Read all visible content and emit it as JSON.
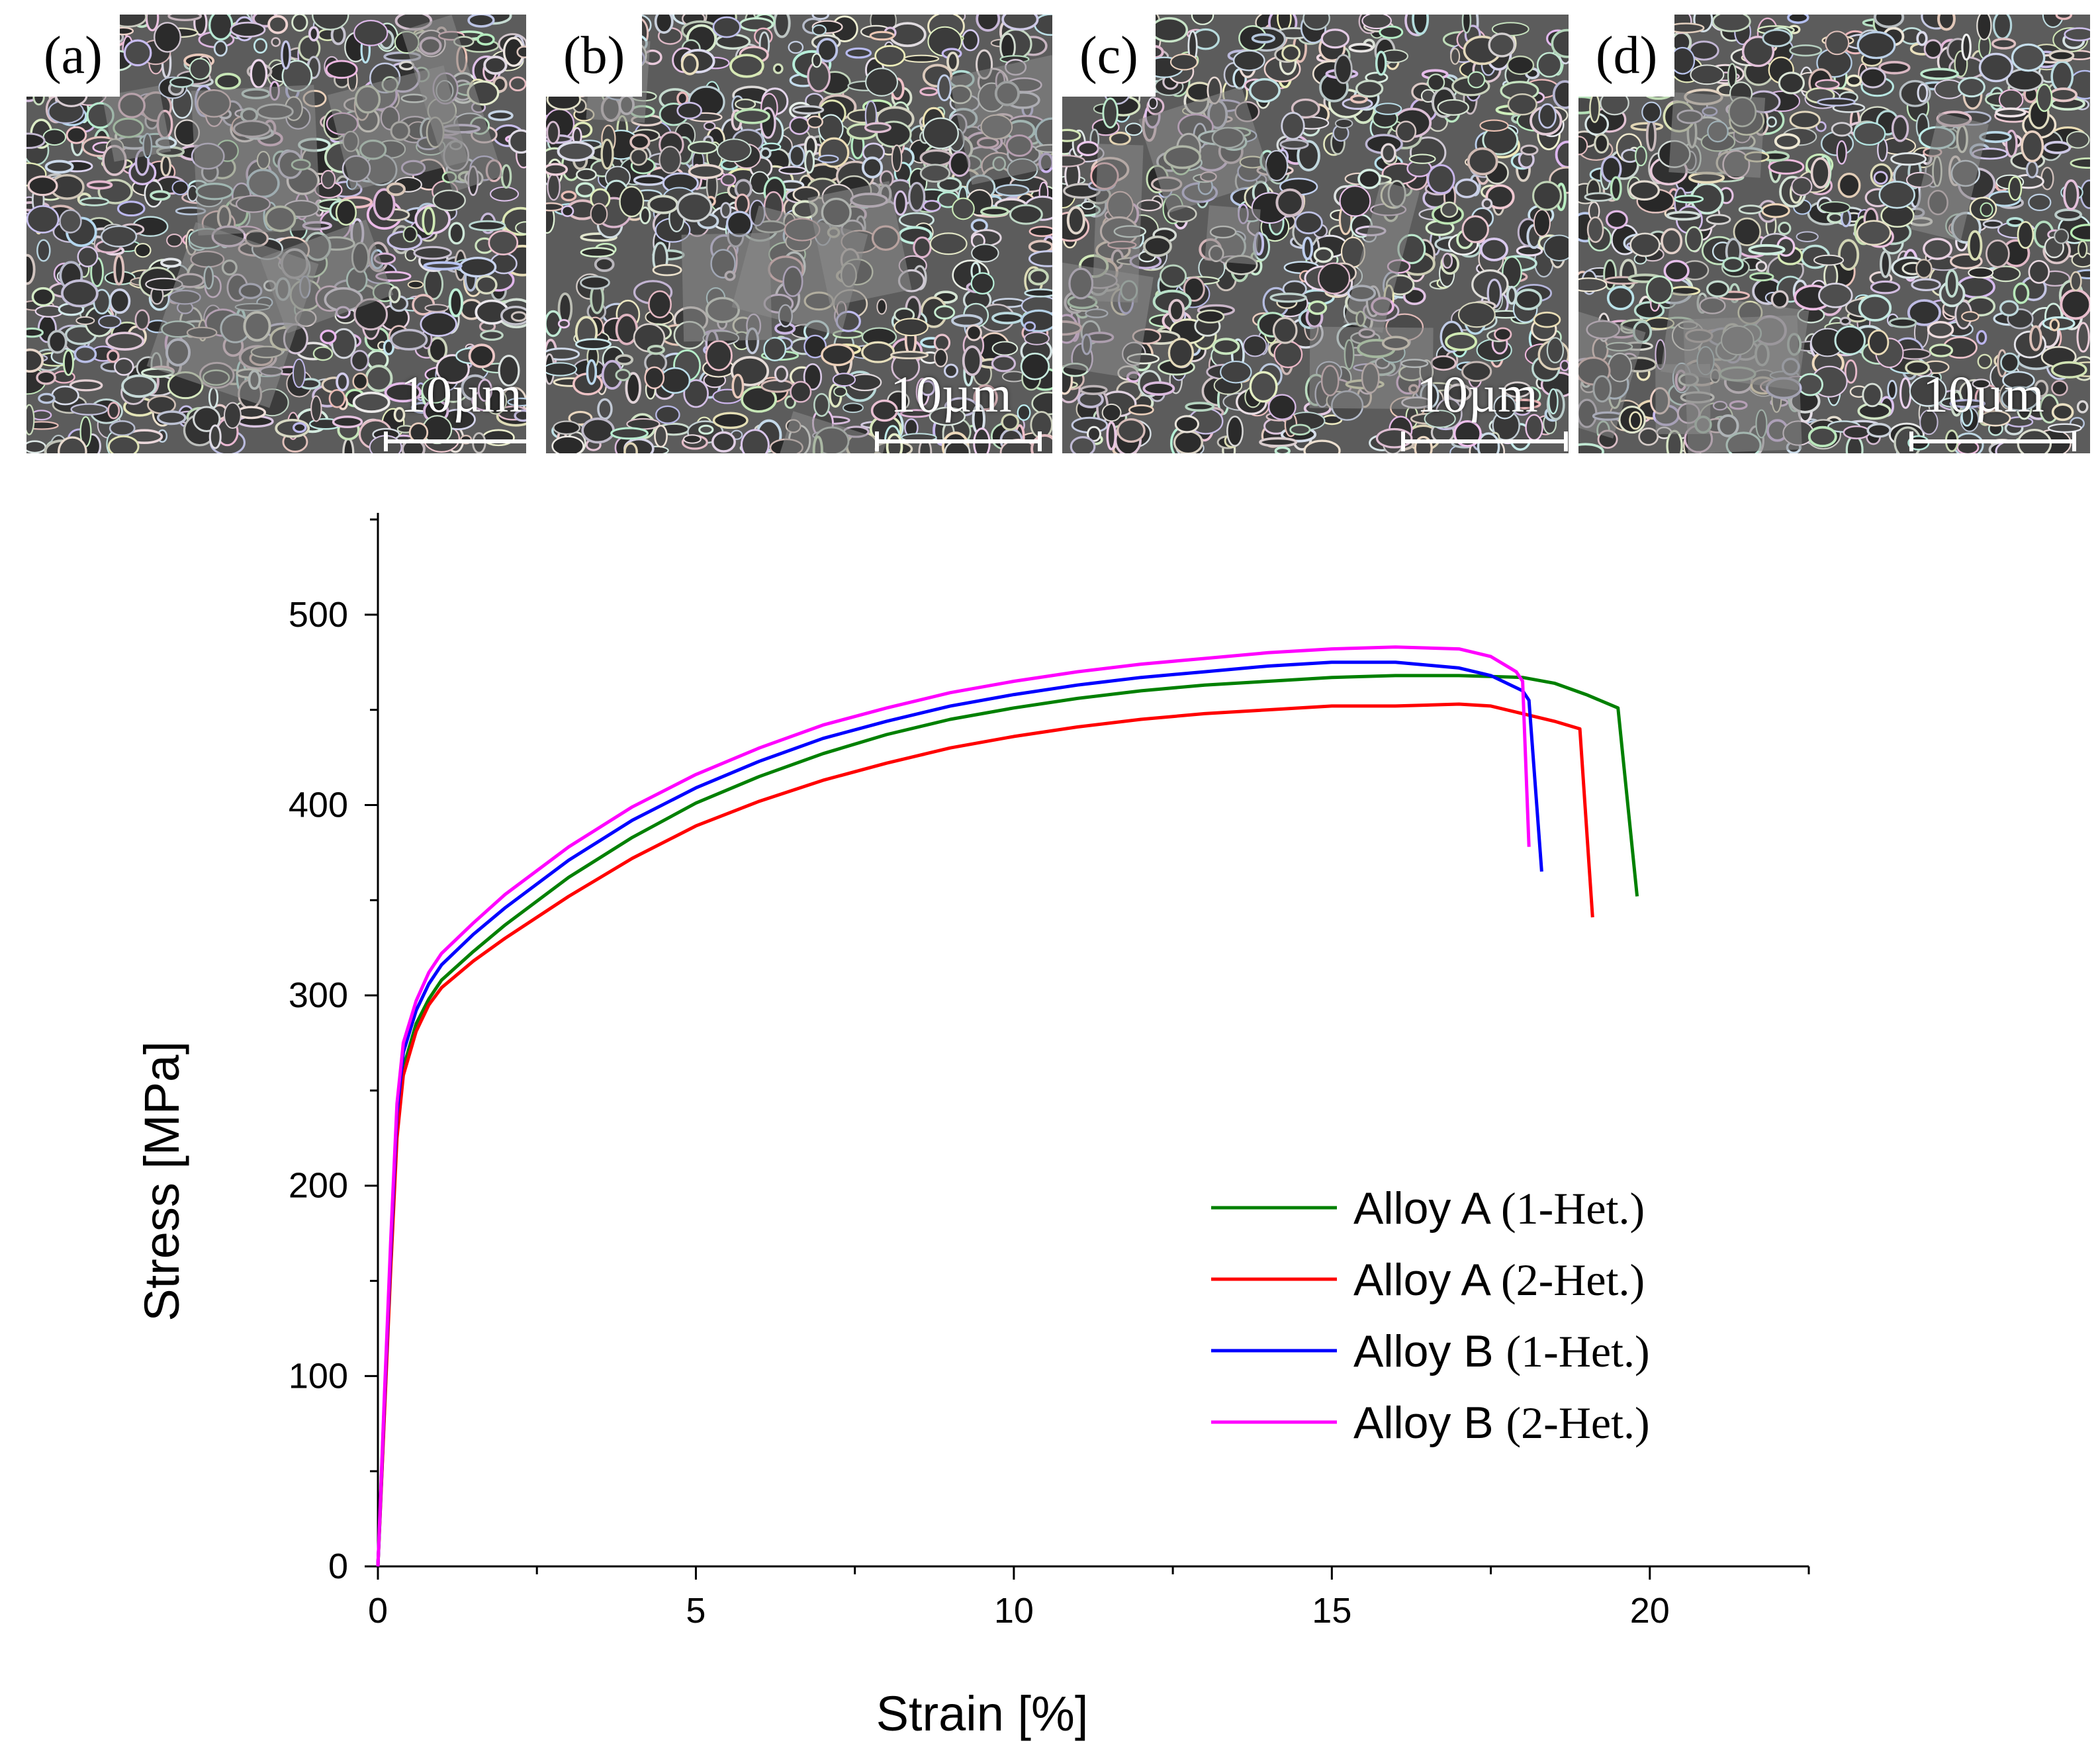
{
  "panels": [
    {
      "label": "(a)",
      "scale_label": "10µm"
    },
    {
      "label": "(b)",
      "scale_label": "10µm"
    },
    {
      "label": "(c)",
      "scale_label": "10µm"
    },
    {
      "label": "(d)",
      "scale_label": "10µm"
    }
  ],
  "chart_data": {
    "type": "line",
    "xlabel": "Strain [%]",
    "ylabel": "Stress [MPa]",
    "xlim": [
      0,
      22.5
    ],
    "ylim": [
      0,
      550
    ],
    "xticks": [
      0,
      5,
      10,
      15,
      20
    ],
    "yticks": [
      0,
      100,
      200,
      300,
      400,
      500
    ],
    "legend_position": "bottom-right",
    "grid": false,
    "series": [
      {
        "name_main": "Alloy A",
        "name_suffix": "(1-Het.)",
        "color": "#008000",
        "x": [
          0,
          0.1,
          0.2,
          0.3,
          0.4,
          0.6,
          0.8,
          1.0,
          1.5,
          2,
          3,
          4,
          5,
          6,
          7,
          8,
          9,
          10,
          11,
          12,
          13,
          14,
          15,
          16,
          17,
          18,
          18.5,
          19,
          19.5,
          19.8
        ],
        "y": [
          0,
          80,
          160,
          230,
          262,
          285,
          298,
          308,
          323,
          337,
          362,
          383,
          401,
          415,
          427,
          437,
          445,
          451,
          456,
          460,
          463,
          465,
          467,
          468,
          468,
          467,
          464,
          458,
          451,
          352
        ]
      },
      {
        "name_main": "Alloy A",
        "name_suffix": "(2-Het.)",
        "color": "#ff0000",
        "x": [
          0,
          0.1,
          0.2,
          0.3,
          0.4,
          0.6,
          0.8,
          1.0,
          1.5,
          2,
          3,
          4,
          5,
          6,
          7,
          8,
          9,
          10,
          11,
          12,
          13,
          14,
          15,
          16,
          17,
          17.5,
          18,
          18.5,
          18.9,
          19.1
        ],
        "y": [
          0,
          78,
          155,
          225,
          258,
          281,
          295,
          304,
          318,
          330,
          352,
          372,
          389,
          402,
          413,
          422,
          430,
          436,
          441,
          445,
          448,
          450,
          452,
          452,
          453,
          452,
          448,
          444,
          440,
          341
        ]
      },
      {
        "name_main": "Alloy B",
        "name_suffix": "(1-Het.)",
        "color": "#0000ff",
        "x": [
          0,
          0.1,
          0.2,
          0.3,
          0.4,
          0.6,
          0.8,
          1.0,
          1.5,
          2,
          3,
          4,
          5,
          6,
          7,
          8,
          9,
          10,
          11,
          12,
          13,
          14,
          15,
          16,
          17,
          17.5,
          18.0,
          18.1,
          18.3
        ],
        "y": [
          0,
          85,
          165,
          238,
          270,
          292,
          306,
          316,
          332,
          346,
          371,
          392,
          409,
          423,
          435,
          444,
          452,
          458,
          463,
          467,
          470,
          473,
          475,
          475,
          472,
          468,
          460,
          455,
          365
        ]
      },
      {
        "name_main": "Alloy B",
        "name_suffix": "(2-Het.)",
        "color": "#ff00ff",
        "x": [
          0,
          0.1,
          0.2,
          0.3,
          0.4,
          0.6,
          0.8,
          1.0,
          1.5,
          2,
          3,
          4,
          5,
          6,
          7,
          8,
          9,
          10,
          11,
          12,
          13,
          14,
          15,
          16,
          17,
          17.5,
          17.9,
          18.0,
          18.1
        ],
        "y": [
          0,
          88,
          170,
          243,
          275,
          297,
          312,
          322,
          338,
          353,
          378,
          399,
          416,
          430,
          442,
          451,
          459,
          465,
          470,
          474,
          477,
          480,
          482,
          483,
          482,
          478,
          470,
          465,
          378
        ]
      }
    ]
  }
}
